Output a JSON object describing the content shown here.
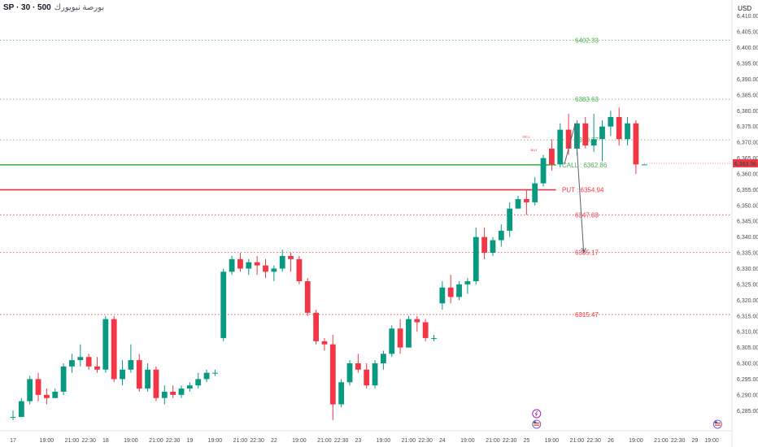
{
  "header": {
    "symbol": "SP · 30 · 500",
    "name": "بورصة نيويورك",
    "currency": "USD"
  },
  "chart_data": {
    "type": "candlestick",
    "ylim": [
      6282.5,
      6412.5
    ],
    "yticks": [
      "6,410.00",
      "6,405.00",
      "6,400.00",
      "6,395.00",
      "6,390.00",
      "6,385.00",
      "6,380.00",
      "6,375.00",
      "6,370.00",
      "6,365.00",
      "6,360.00",
      "6,355.00",
      "6,350.00",
      "6,345.00",
      "6,340.00",
      "6,335.00",
      "6,330.00",
      "6,325.00",
      "6,320.00",
      "6,315.00",
      "6,310.00",
      "6,305.00",
      "6,300.00",
      "6,295.00",
      "6,290.00",
      "6,285.00"
    ],
    "xticks": [
      {
        "slot": 0,
        "label": "17"
      },
      {
        "slot": 4,
        "label": "19:00"
      },
      {
        "slot": 7,
        "label": "21:00"
      },
      {
        "slot": 9,
        "label": "22:30"
      },
      {
        "slot": 11,
        "label": "18"
      },
      {
        "slot": 14,
        "label": "19:00"
      },
      {
        "slot": 17,
        "label": "21:00"
      },
      {
        "slot": 19,
        "label": "22:30"
      },
      {
        "slot": 21,
        "label": "19"
      },
      {
        "slot": 24,
        "label": "19:00"
      },
      {
        "slot": 27,
        "label": "21:00"
      },
      {
        "slot": 29,
        "label": "22:30"
      },
      {
        "slot": 31,
        "label": "22"
      },
      {
        "slot": 34,
        "label": "19:00"
      },
      {
        "slot": 37,
        "label": "21:00"
      },
      {
        "slot": 39,
        "label": "22:30"
      },
      {
        "slot": 41,
        "label": "23"
      },
      {
        "slot": 44,
        "label": "19:00"
      },
      {
        "slot": 47,
        "label": "21:00"
      },
      {
        "slot": 49,
        "label": "22:30"
      },
      {
        "slot": 51,
        "label": "24"
      },
      {
        "slot": 54,
        "label": "19:00"
      },
      {
        "slot": 57,
        "label": "21:00"
      },
      {
        "slot": 59,
        "label": "22:30"
      },
      {
        "slot": 61,
        "label": "25"
      },
      {
        "slot": 64,
        "label": "19:00"
      },
      {
        "slot": 67,
        "label": "21:00"
      },
      {
        "slot": 69,
        "label": "22:30"
      },
      {
        "slot": 71,
        "label": "26"
      },
      {
        "slot": 74,
        "label": "19:00"
      },
      {
        "slot": 77,
        "label": "21:00"
      },
      {
        "slot": 79,
        "label": "22:30"
      },
      {
        "slot": 81,
        "label": "29"
      },
      {
        "slot": 83,
        "label": "19:00"
      }
    ],
    "candles": [
      [
        6283,
        6285,
        6282,
        6283
      ],
      [
        6283,
        6289,
        6283,
        6288
      ],
      [
        6288,
        6296,
        6287,
        6295
      ],
      [
        6295,
        6297,
        6288,
        6290
      ],
      [
        6290,
        6292,
        6287,
        6289
      ],
      [
        6289,
        6292,
        6289,
        6291
      ],
      [
        6291,
        6300,
        6290,
        6299
      ],
      [
        6299,
        6303,
        6297,
        6301
      ],
      [
        6301,
        6306,
        6299,
        6302
      ],
      [
        6302,
        6303,
        6298,
        6299
      ],
      [
        6299,
        6302,
        6297,
        6298
      ],
      [
        6298,
        6315,
        6297,
        6314
      ],
      [
        6314,
        6315,
        6294,
        6295
      ],
      [
        6295,
        6301,
        6293,
        6298
      ],
      [
        6298,
        6306,
        6297,
        6301
      ],
      [
        6301,
        6303,
        6291,
        6292
      ],
      [
        6292,
        6300,
        6291,
        6298
      ],
      [
        6298,
        6299,
        6288,
        6289
      ],
      [
        6289,
        6293,
        6287,
        6291
      ],
      [
        6291,
        6293,
        6289,
        6290
      ],
      [
        6290,
        6293,
        6289,
        6292
      ],
      [
        6292,
        6294,
        6291,
        6293
      ],
      [
        6293,
        6297,
        6292,
        6295
      ],
      [
        6295,
        6298,
        6294,
        6297
      ],
      [
        6297,
        6298,
        6296,
        6297
      ],
      [
        6308,
        6330,
        6307,
        6329
      ],
      [
        6329,
        6334,
        6328,
        6333
      ],
      [
        6333,
        6335,
        6329,
        6330
      ],
      [
        6330,
        6333,
        6328,
        6332
      ],
      [
        6332,
        6334,
        6328,
        6331
      ],
      [
        6331,
        6333,
        6327,
        6329
      ],
      [
        6329,
        6331,
        6326,
        6330
      ],
      [
        6330,
        6336,
        6329,
        6334
      ],
      [
        6334,
        6335,
        6329,
        6333
      ],
      [
        6333,
        6334,
        6325,
        6326
      ],
      [
        6326,
        6327,
        6315,
        6316
      ],
      [
        6316,
        6317,
        6306,
        6307
      ],
      [
        6307,
        6308,
        6304,
        6306
      ],
      [
        6306,
        6309,
        6282,
        6287
      ],
      [
        6287,
        6295,
        6286,
        6294
      ],
      [
        6294,
        6301,
        6293,
        6300
      ],
      [
        6300,
        6303,
        6297,
        6298
      ],
      [
        6298,
        6300,
        6292,
        6293
      ],
      [
        6293,
        6301,
        6292,
        6300
      ],
      [
        6300,
        6304,
        6298,
        6303
      ],
      [
        6303,
        6312,
        6302,
        6311
      ],
      [
        6311,
        6314,
        6303,
        6305
      ],
      [
        6305,
        6315,
        6305,
        6314
      ],
      [
        6314,
        6315,
        6310,
        6313
      ],
      [
        6313,
        6314,
        6307,
        6308
      ],
      [
        6308,
        6309,
        6307,
        6308
      ],
      [
        6319,
        6326,
        6317,
        6324
      ],
      [
        6324,
        6328,
        6319,
        6321
      ],
      [
        6321,
        6326,
        6320,
        6325
      ],
      [
        6325,
        6327,
        6322,
        6326
      ],
      [
        6326,
        6343,
        6325,
        6340
      ],
      [
        6340,
        6343,
        6333,
        6335
      ],
      [
        6335,
        6340,
        6334,
        6339
      ],
      [
        6339,
        6344,
        6337,
        6342
      ],
      [
        6342,
        6351,
        6340,
        6349
      ],
      [
        6349,
        6353,
        6349,
        6352
      ],
      [
        6352,
        6355,
        6347,
        6351
      ],
      [
        6351,
        6359,
        6350,
        6357
      ],
      [
        6357,
        6366,
        6356,
        6365
      ],
      [
        6368,
        6371,
        6361,
        6363
      ],
      [
        6363,
        6376,
        6362,
        6374
      ],
      [
        6374,
        6379,
        6366,
        6368
      ],
      [
        6368,
        6377,
        6366,
        6376
      ],
      [
        6376,
        6378,
        6368,
        6369
      ],
      [
        6369,
        6379,
        6367,
        6371
      ],
      [
        6371,
        6377,
        6364,
        6375
      ],
      [
        6375,
        6380,
        6372,
        6378
      ],
      [
        6378,
        6381,
        6369,
        6371
      ],
      [
        6371,
        6378,
        6369,
        6376
      ],
      [
        6376,
        6377,
        6360,
        6363
      ],
      [
        6363,
        6363,
        6363,
        6363
      ]
    ],
    "levels": [
      {
        "value": 6402.33,
        "label": "6402.33",
        "color": "#4caf50",
        "style": "dotted"
      },
      {
        "value": 6383.63,
        "label": "6383.63",
        "color": "#4caf50",
        "style": "dotted"
      },
      {
        "value": 6370.77,
        "label": "6370.77",
        "color": "#4caf50",
        "style": "dotted"
      },
      {
        "value": 6362.86,
        "label": "CALL : 6362.86",
        "color": "#4caf50",
        "style": "solid"
      },
      {
        "value": 6354.94,
        "label": "PUT : 6354.94",
        "color": "#f23645",
        "style": "solid"
      },
      {
        "value": 6347.03,
        "label": "6347.03",
        "color": "#f23645",
        "style": "dotted"
      },
      {
        "value": 6335.17,
        "label": "6335.17",
        "color": "#f23645",
        "style": "dotted"
      },
      {
        "value": 6315.47,
        "label": "6315.47",
        "color": "#f23645",
        "style": "dotted"
      }
    ],
    "last_price": "6,363.36",
    "up_color": "#089981",
    "down_color": "#f23645",
    "forecast_arrow": {
      "start_slot": 65.5,
      "start_value": 6363,
      "peak_slot": 66.8,
      "peak_value": 6376,
      "end_slot": 67.8,
      "end_value": 6335
    },
    "annotations": {
      "sell_label": "SELL",
      "buy_label": "BUY"
    }
  }
}
